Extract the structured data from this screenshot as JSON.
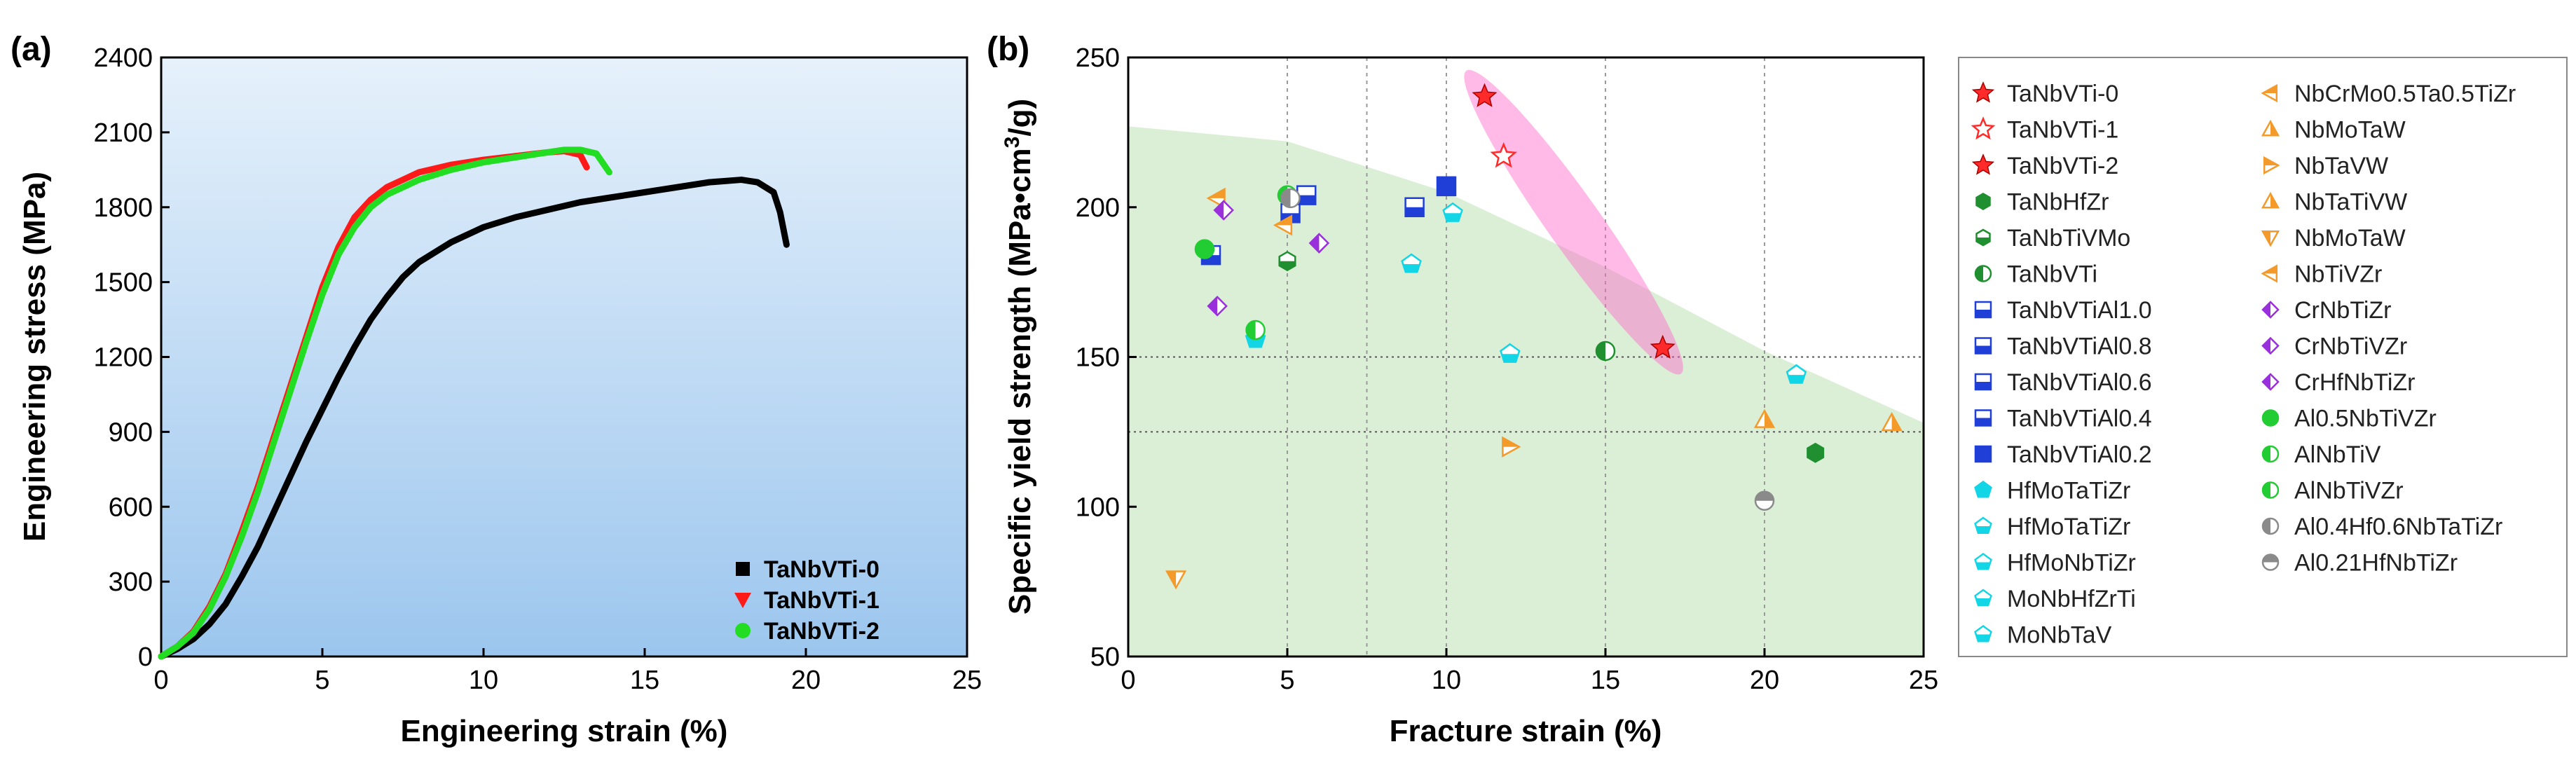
{
  "panel_a_label": "(a)",
  "panel_b_label": "(b)",
  "colors": {
    "TaNbVTi-0": "#000000",
    "TaNbVTi-1": "#ff1a1a",
    "TaNbVTi-2": "#22dd22",
    "red": "#ff2a2a",
    "green_dark": "#1f8f2f",
    "green": "#22cc33",
    "blue": "#1f3fd6",
    "cyan": "#12d6e6",
    "orange": "#f39a2b",
    "purple": "#9a2fdc",
    "gray": "#8a8a8a"
  },
  "chart_data": [
    {
      "type": "line",
      "title": "",
      "xlabel": "Engineering strain (%)",
      "ylabel": "Engineering stress (MPa)",
      "xlim": [
        0,
        25
      ],
      "ylim": [
        0,
        2400
      ],
      "xticks": [
        0,
        5,
        10,
        15,
        20,
        25
      ],
      "yticks": [
        0,
        300,
        600,
        900,
        1200,
        1500,
        1800,
        2100,
        2400
      ],
      "legend_position": "bottom-right",
      "series": [
        {
          "name": "TaNbVTi-0",
          "x": [
            0,
            0.5,
            1,
            1.5,
            2,
            2.5,
            3,
            3.5,
            4,
            4.5,
            5,
            5.5,
            6,
            6.5,
            7,
            7.5,
            8,
            9,
            10,
            11,
            12,
            13,
            14,
            15,
            16,
            17,
            18,
            18.5,
            19,
            19.2,
            19.4
          ],
          "y": [
            0,
            30,
            70,
            130,
            210,
            320,
            440,
            580,
            720,
            860,
            990,
            1120,
            1240,
            1350,
            1440,
            1520,
            1580,
            1660,
            1720,
            1760,
            1790,
            1820,
            1840,
            1860,
            1880,
            1900,
            1910,
            1900,
            1860,
            1780,
            1650
          ]
        },
        {
          "name": "TaNbVTi-1",
          "x": [
            0,
            0.5,
            1,
            1.5,
            2,
            2.5,
            3,
            3.5,
            4,
            4.5,
            5,
            5.5,
            6,
            6.5,
            7,
            7.5,
            8,
            9,
            10,
            11,
            12,
            12.5,
            13,
            13.2
          ],
          "y": [
            0,
            40,
            100,
            200,
            330,
            500,
            680,
            880,
            1080,
            1280,
            1480,
            1640,
            1760,
            1830,
            1880,
            1910,
            1940,
            1970,
            1990,
            2005,
            2020,
            2025,
            2010,
            1960
          ]
        },
        {
          "name": "TaNbVTi-2",
          "x": [
            0,
            0.5,
            1,
            1.5,
            2,
            2.5,
            3,
            3.5,
            4,
            4.5,
            5,
            5.5,
            6,
            6.5,
            7,
            7.5,
            8,
            9,
            10,
            11,
            12,
            12.5,
            13,
            13.5,
            13.9
          ],
          "y": [
            0,
            40,
            95,
            190,
            320,
            480,
            660,
            860,
            1060,
            1260,
            1450,
            1610,
            1720,
            1800,
            1850,
            1880,
            1910,
            1950,
            1980,
            2000,
            2020,
            2030,
            2030,
            2015,
            1940
          ]
        }
      ]
    },
    {
      "type": "scatter",
      "title": "",
      "xlabel": "Fracture strain (%)",
      "ylabel": "Specific yield strength (MPa•cm³/g)",
      "ylabel_parts": [
        "Specific yield strength (MPa•cm",
        "3",
        "/g)"
      ],
      "xlim": [
        0,
        25
      ],
      "ylim": [
        50,
        250
      ],
      "xticks": [
        0,
        5,
        10,
        15,
        20,
        25
      ],
      "yticks": [
        50,
        100,
        150,
        200,
        250
      ],
      "vertical_gridlines": [
        5,
        7.5,
        10,
        15,
        20
      ],
      "horizontal_gridlines": [
        150,
        125
      ],
      "green_region_boundary": {
        "x": [
          0,
          5,
          10,
          15,
          20,
          25
        ],
        "y": [
          227,
          222,
          205,
          180,
          152,
          128
        ]
      },
      "highlight": "TaNbVTi",
      "series": [
        {
          "name": "TaNbVTi-0",
          "color": "red",
          "marker": "star-filled",
          "points": [
            [
              16.8,
              153
            ]
          ]
        },
        {
          "name": "TaNbVTi-1",
          "color": "red",
          "marker": "star-open",
          "points": [
            [
              11.8,
              217
            ]
          ]
        },
        {
          "name": "TaNbVTi-2",
          "color": "red",
          "marker": "star-filled",
          "points": [
            [
              11.2,
              237
            ]
          ]
        },
        {
          "name": "TaNbHfZr",
          "color": "green_dark",
          "marker": "hexagon",
          "points": [
            [
              21.6,
              118
            ]
          ]
        },
        {
          "name": "TaNbTiVMo",
          "color": "green_dark",
          "marker": "hexagon-half",
          "points": [
            [
              5,
              182
            ]
          ]
        },
        {
          "name": "TaNbVTi",
          "color": "green_dark",
          "marker": "circle-half",
          "points": [
            [
              15,
              152
            ]
          ]
        },
        {
          "name": "TaNbVTiAl1.0",
          "color": "blue",
          "marker": "square-half",
          "points": [
            [
              2.6,
              184
            ]
          ]
        },
        {
          "name": "TaNbVTiAl0.8",
          "color": "blue",
          "marker": "square-half",
          "points": [
            [
              5.1,
              198
            ]
          ]
        },
        {
          "name": "TaNbVTiAl0.6",
          "color": "blue",
          "marker": "square-half",
          "points": [
            [
              5.6,
              204
            ]
          ]
        },
        {
          "name": "TaNbVTiAl0.4",
          "color": "blue",
          "marker": "square-half",
          "points": [
            [
              9,
              200
            ]
          ]
        },
        {
          "name": "TaNbVTiAl0.2",
          "color": "blue",
          "marker": "square-filled",
          "points": [
            [
              10,
              207
            ]
          ]
        },
        {
          "name": "HfMoTaTiZr",
          "color": "cyan",
          "marker": "pentagon",
          "points": [
            [
              4,
              156
            ]
          ]
        },
        {
          "name": "HfMoTaTiZr",
          "color": "cyan",
          "marker": "pentagon-half",
          "points": [
            [
              8.9,
              181
            ]
          ]
        },
        {
          "name": "HfMoNbTiZr",
          "color": "cyan",
          "marker": "pentagon-half",
          "points": [
            [
              21,
              144
            ]
          ]
        },
        {
          "name": "MoNbHfZrTi",
          "color": "cyan",
          "marker": "pentagon-half",
          "points": [
            [
              12,
              151
            ]
          ]
        },
        {
          "name": "MoNbTaV",
          "color": "cyan",
          "marker": "pentagon-half",
          "points": [
            [
              10.2,
              198
            ]
          ]
        },
        {
          "name": "NbCrMo0.5Ta0.5TiZr",
          "color": "orange",
          "marker": "triangle-left",
          "points": [
            [
              2.8,
              203
            ]
          ]
        },
        {
          "name": "NbMoTaW",
          "color": "orange",
          "marker": "triangle-up",
          "points": [
            [
              20,
              129
            ]
          ]
        },
        {
          "name": "NbTaVW",
          "color": "orange",
          "marker": "triangle-right",
          "points": [
            [
              12,
              120
            ]
          ]
        },
        {
          "name": "NbTaTiVW",
          "color": "orange",
          "marker": "triangle-up",
          "points": [
            [
              24,
              128
            ]
          ]
        },
        {
          "name": "NbMoTaW",
          "color": "orange",
          "marker": "triangle-down",
          "points": [
            [
              1.5,
              76
            ]
          ]
        },
        {
          "name": "NbTiVZr",
          "color": "orange",
          "marker": "triangle-left",
          "points": [
            [
              4.9,
              194
            ]
          ]
        },
        {
          "name": "CrNbTiZr",
          "color": "purple",
          "marker": "diamond-half",
          "points": [
            [
              3,
              199
            ]
          ]
        },
        {
          "name": "CrNbTiVZr",
          "color": "purple",
          "marker": "diamond-half",
          "points": [
            [
              6,
              188
            ]
          ]
        },
        {
          "name": "CrHfNbTiZr",
          "color": "purple",
          "marker": "diamond-half",
          "points": [
            [
              2.8,
              167
            ]
          ]
        },
        {
          "name": "Al0.5NbTiVZr",
          "color": "green",
          "marker": "circle-filled",
          "points": [
            [
              2.4,
              186
            ]
          ]
        },
        {
          "name": "AlNbTiV",
          "color": "green",
          "marker": "circle-half",
          "points": [
            [
              4,
              159
            ]
          ]
        },
        {
          "name": "AlNbTiVZr",
          "color": "green",
          "marker": "circle-half",
          "points": [
            [
              5,
              204
            ]
          ]
        },
        {
          "name": "Al0.4Hf0.6NbTaTiZr",
          "color": "gray",
          "marker": "circle-half",
          "points": [
            [
              5.1,
              203
            ]
          ]
        },
        {
          "name": "Al0.21HfNbTiZr",
          "color": "gray",
          "marker": "circle-half-top",
          "points": [
            [
              20,
              102
            ]
          ]
        }
      ]
    }
  ]
}
